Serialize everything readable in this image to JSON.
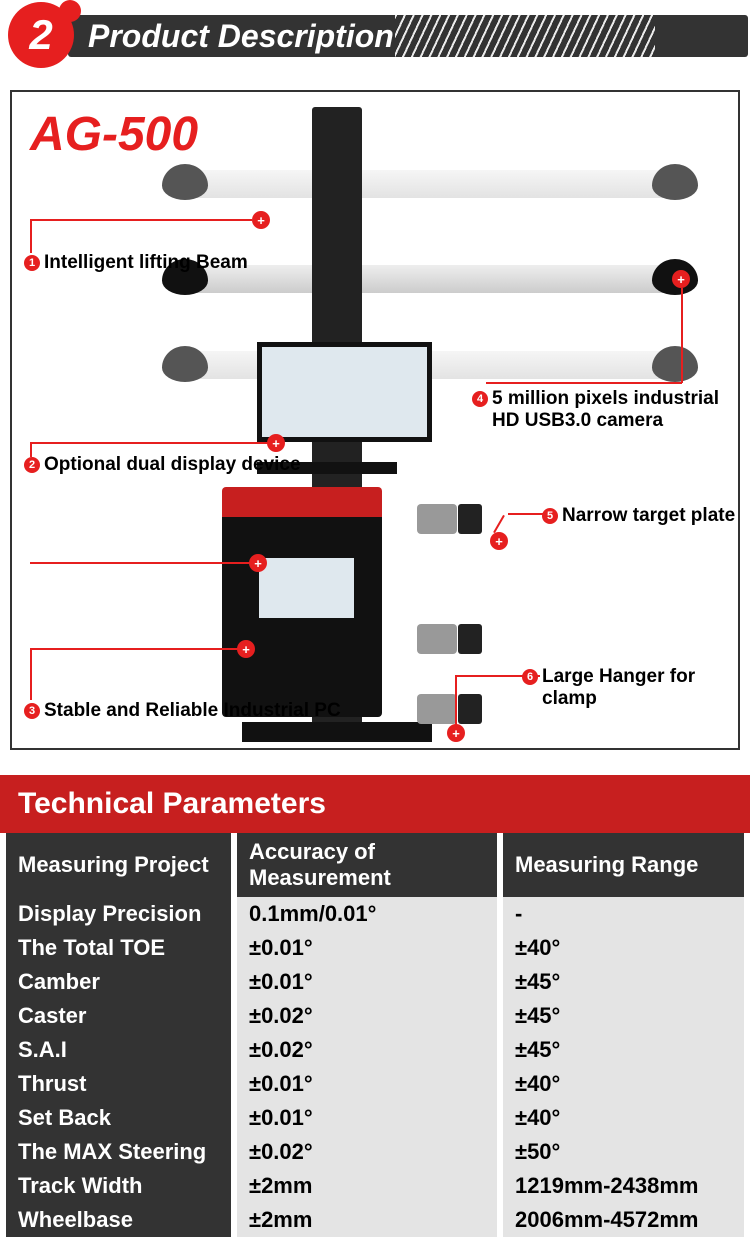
{
  "section": {
    "num": "2",
    "title": "Product Description"
  },
  "product": {
    "model": "AG-500",
    "callouts": [
      {
        "n": "1",
        "text": "Intelligent lifting Beam"
      },
      {
        "n": "2",
        "text": "Optional dual display device"
      },
      {
        "n": "3",
        "text": "Stable and Reliable Industrial PC"
      },
      {
        "n": "4",
        "text": "5 million pixels industrial HD USB3.0 camera"
      },
      {
        "n": "5",
        "text": "Narrow target plate"
      },
      {
        "n": "6",
        "text": "Large Hanger for clamp"
      }
    ]
  },
  "tech": {
    "header": "Technical Parameters",
    "columns": [
      "Measuring Project",
      "Accuracy of Measurement",
      "Measuring Range"
    ],
    "rows": [
      [
        "Display Precision",
        "0.1mm/0.01°",
        "-"
      ],
      [
        "The Total TOE",
        "±0.01°",
        "±40°"
      ],
      [
        "Camber",
        "±0.01°",
        "±45°"
      ],
      [
        "Caster",
        "±0.02°",
        "±45°"
      ],
      [
        "S.A.I",
        "±0.02°",
        "±45°"
      ],
      [
        "Thrust",
        "±0.01°",
        "±40°"
      ],
      [
        "Set Back",
        "±0.01°",
        "±40°"
      ],
      [
        "The MAX Steering",
        "±0.02°",
        "±50°"
      ],
      [
        "Track Width",
        "±2mm",
        "1219mm-2438mm"
      ],
      [
        "Wheelbase",
        "±2mm",
        "2006mm-4572mm"
      ]
    ]
  },
  "colors": {
    "accent_red": "#e61f1f",
    "header_red": "#c71f1f",
    "dark": "#333333",
    "row_even": "#e4e4e4"
  }
}
